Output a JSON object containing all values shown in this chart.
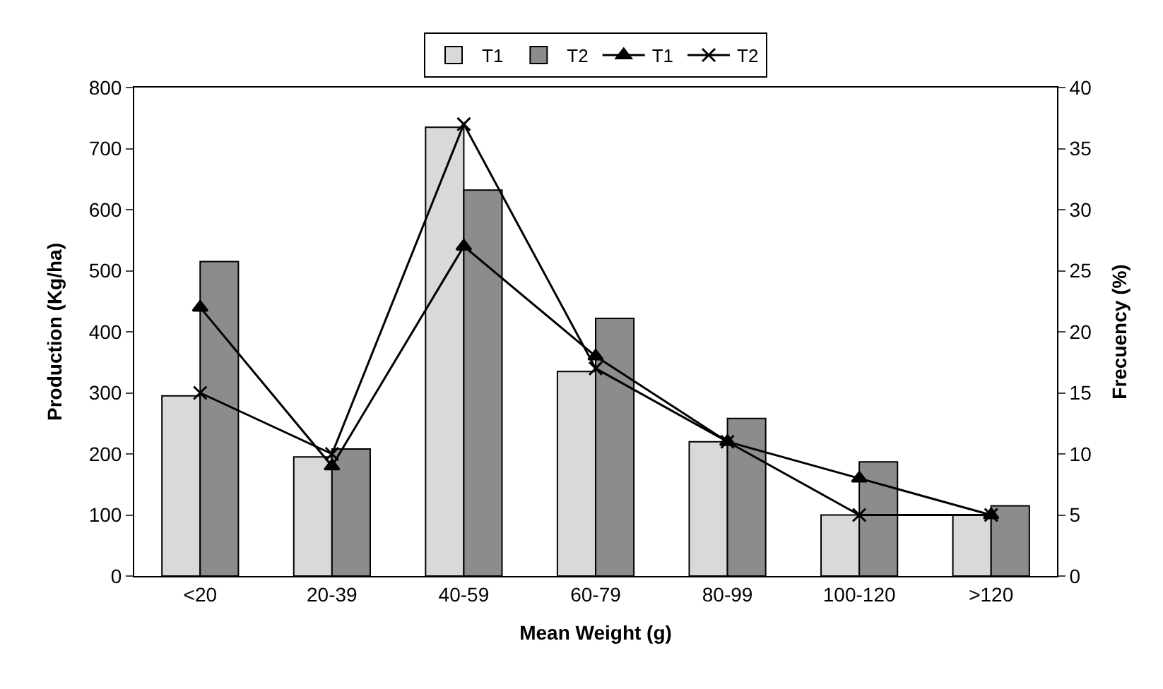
{
  "chart_data": {
    "type": "bar",
    "xlabel": "Mean Weight (g)",
    "ylabel": "Production (Kg/ha)",
    "y2label": "Frecuency (%)",
    "categories": [
      "<20",
      "20-39",
      "40-59",
      "60-79",
      "80-99",
      "100-120",
      ">120"
    ],
    "series": [
      {
        "name": "T1",
        "color": "#d9d9d9",
        "values": [
          295,
          195,
          735,
          335,
          220,
          100,
          100
        ]
      },
      {
        "name": "T2",
        "color": "#8c8c8c",
        "values": [
          515,
          208,
          632,
          422,
          258,
          187,
          115
        ]
      },
      {
        "name": "T1",
        "type": "line",
        "axis": "y2",
        "marker": "triangle",
        "color": "#000000",
        "values": [
          22,
          9,
          27,
          18,
          11,
          8,
          5
        ]
      },
      {
        "name": "T2",
        "type": "line",
        "axis": "y2",
        "marker": "cross",
        "color": "#000000",
        "values": [
          15,
          10,
          37,
          17,
          11,
          5,
          5
        ]
      }
    ],
    "ylim": [
      0,
      800
    ],
    "yticks": [
      0,
      100,
      200,
      300,
      400,
      500,
      600,
      700,
      800
    ],
    "y2lim": [
      0,
      40
    ],
    "y2ticks": [
      0,
      5,
      10,
      15,
      20,
      25,
      30,
      35,
      40
    ],
    "grid": false,
    "legend": "top",
    "line_style": "solid"
  }
}
